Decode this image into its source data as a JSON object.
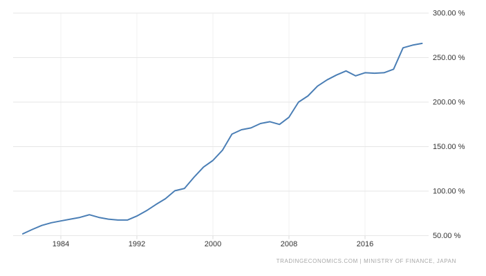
{
  "chart_data": {
    "type": "line",
    "title": "",
    "xlabel": "",
    "ylabel": "",
    "x": [
      1980,
      1981,
      1982,
      1983,
      1984,
      1985,
      1986,
      1987,
      1988,
      1989,
      1990,
      1991,
      1992,
      1993,
      1994,
      1995,
      1996,
      1997,
      1998,
      1999,
      2000,
      2001,
      2002,
      2003,
      2004,
      2005,
      2006,
      2007,
      2008,
      2009,
      2010,
      2011,
      2012,
      2013,
      2014,
      2015,
      2016,
      2017,
      2018,
      2019,
      2020,
      2021,
      2022
    ],
    "values": [
      52,
      57,
      61.5,
      64.5,
      66.5,
      68.5,
      70.5,
      73.5,
      70.5,
      68.5,
      67.5,
      67.5,
      72,
      78,
      85,
      91.5,
      100.5,
      103,
      115.5,
      127,
      134.5,
      146,
      164,
      169,
      171,
      176,
      178,
      175,
      183,
      200,
      207,
      218,
      225,
      230.5,
      235,
      229.5,
      233,
      232.5,
      233,
      237,
      261,
      264,
      266
    ],
    "unit": "%",
    "xlim": [
      1980,
      2022
    ],
    "ylim": [
      50,
      300
    ],
    "grid": true,
    "legend": "none",
    "y_axis_side": "right",
    "y_ticks": {
      "values": [
        300,
        250,
        200,
        150,
        100,
        50
      ],
      "labels": [
        "300.00 %",
        "250.00 %",
        "200.00 %",
        "150.00 %",
        "100.00 %",
        "50.00 %"
      ]
    },
    "x_ticks": {
      "values": [
        1984,
        1992,
        2000,
        2008,
        2016
      ],
      "labels": [
        "1984",
        "1992",
        "2000",
        "2008",
        "2016"
      ]
    }
  },
  "attribution": {
    "text": "TRADINGECONOMICS.COM | MINISTRY OF FINANCE, JAPAN"
  },
  "colors": {
    "line": "#4a7eb5",
    "grid_horizontal": "#e6e6e6",
    "grid_vertical": "#f0f0f0",
    "tick_mark": "#d8d8d8",
    "axis_label": "#333333",
    "attribution": "#a6a6a6",
    "background": "#ffffff"
  }
}
